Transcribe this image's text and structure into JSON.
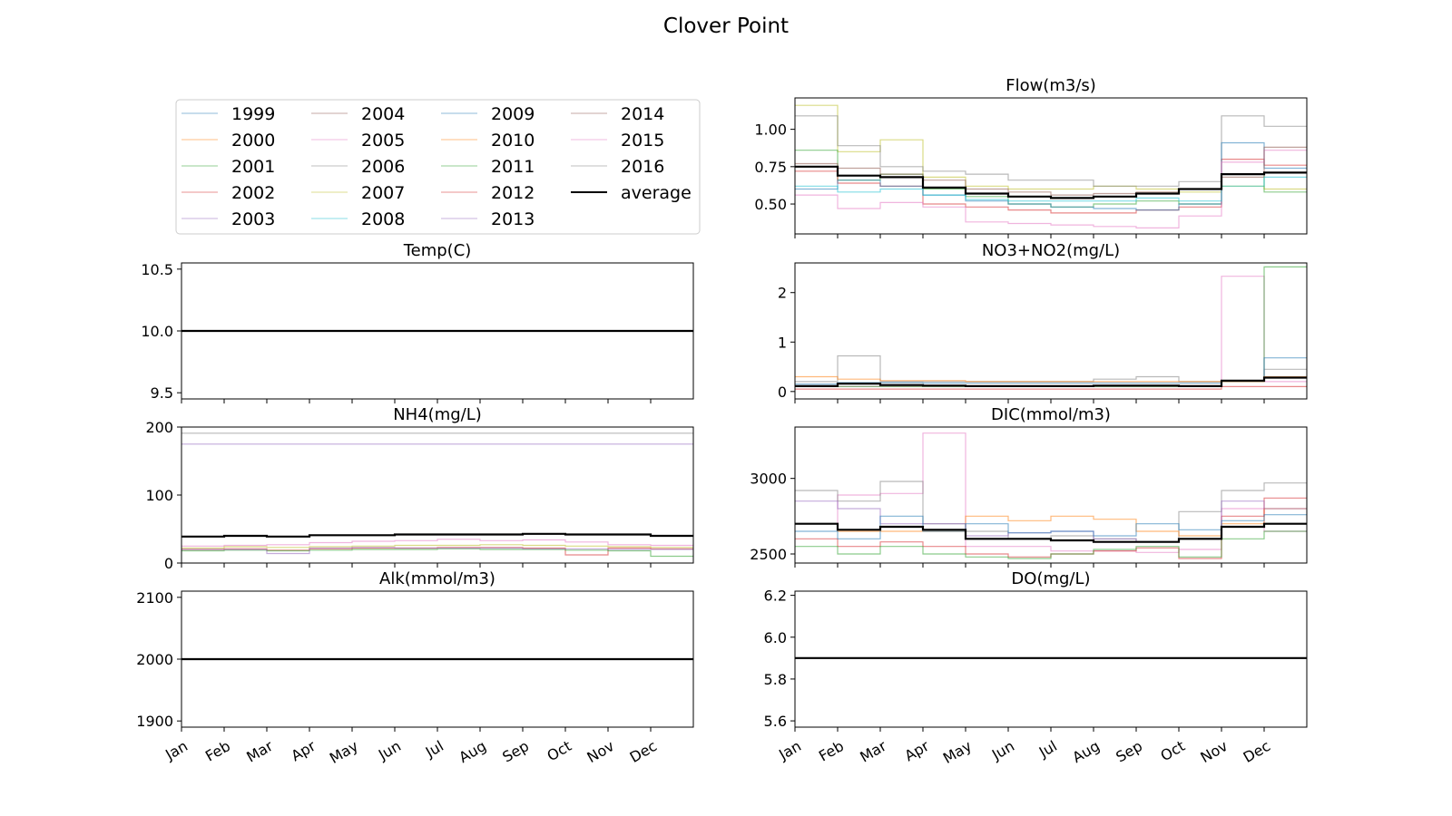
{
  "figure_title": "Clover Point",
  "months": [
    "Jan",
    "Feb",
    "Mar",
    "Apr",
    "May",
    "Jun",
    "Jul",
    "Aug",
    "Sep",
    "Oct",
    "Nov",
    "Dec"
  ],
  "legend": {
    "entries": [
      {
        "label": "1999",
        "color": "#1f77b4"
      },
      {
        "label": "2000",
        "color": "#ff7f0e"
      },
      {
        "label": "2001",
        "color": "#2ca02c"
      },
      {
        "label": "2002",
        "color": "#d62728"
      },
      {
        "label": "2003",
        "color": "#9467bd"
      },
      {
        "label": "2004",
        "color": "#8c564b"
      },
      {
        "label": "2005",
        "color": "#e377c2"
      },
      {
        "label": "2006",
        "color": "#7f7f7f"
      },
      {
        "label": "2007",
        "color": "#bcbd22"
      },
      {
        "label": "2008",
        "color": "#17becf"
      },
      {
        "label": "2009",
        "color": "#1f77b4"
      },
      {
        "label": "2010",
        "color": "#ff7f0e"
      },
      {
        "label": "2011",
        "color": "#2ca02c"
      },
      {
        "label": "2012",
        "color": "#d62728"
      },
      {
        "label": "2013",
        "color": "#9467bd"
      },
      {
        "label": "2014",
        "color": "#8c564b"
      },
      {
        "label": "2015",
        "color": "#e377c2"
      },
      {
        "label": "2016",
        "color": "#7f7f7f"
      },
      {
        "label": "average",
        "color": "#000000"
      }
    ]
  },
  "chart_data": [
    {
      "type": "line",
      "title": "Temp(C)",
      "ylim": [
        9.45,
        10.55
      ],
      "yticks": [
        9.5,
        10.0,
        10.5
      ],
      "tick_decimals": 1,
      "series": [
        {
          "name": "average",
          "values": [
            10,
            10,
            10,
            10,
            10,
            10,
            10,
            10,
            10,
            10,
            10,
            10
          ]
        }
      ]
    },
    {
      "type": "line",
      "title": "NH4(mg/L)",
      "ylim": [
        0,
        200
      ],
      "yticks": [
        0,
        100,
        200
      ],
      "tick_decimals": 0,
      "series": [
        {
          "name": "2006",
          "values": [
            191,
            191,
            191,
            191,
            191,
            191,
            191,
            191,
            191,
            191,
            191,
            191
          ]
        },
        {
          "name": "2003",
          "values": [
            175,
            175,
            175,
            175,
            175,
            175,
            175,
            175,
            175,
            175,
            175,
            175
          ]
        },
        {
          "name": "2005",
          "values": [
            25,
            26,
            27,
            30,
            32,
            33,
            35,
            33,
            34,
            31,
            27,
            26
          ]
        },
        {
          "name": "2007",
          "values": [
            22,
            24,
            23,
            24,
            25,
            26,
            26,
            27,
            26,
            25,
            24,
            23
          ]
        },
        {
          "name": "2002",
          "values": [
            20,
            21,
            19,
            21,
            22,
            22,
            23,
            23,
            22,
            12,
            22,
            21
          ]
        },
        {
          "name": "2001",
          "values": [
            18,
            19,
            18,
            19,
            20,
            20,
            21,
            20,
            20,
            19,
            18,
            10
          ]
        },
        {
          "name": "2013",
          "values": [
            20,
            20,
            14,
            22,
            23,
            22,
            22,
            22,
            21,
            21,
            20,
            20
          ]
        },
        {
          "name": "average",
          "values": [
            39,
            40,
            39,
            41,
            41,
            42,
            42,
            42,
            43,
            42,
            42,
            40
          ]
        }
      ]
    },
    {
      "type": "line",
      "title": "Alk(mmol/m3)",
      "ylim": [
        1890,
        2110
      ],
      "yticks": [
        1900,
        2000,
        2100
      ],
      "tick_decimals": 0,
      "series": [
        {
          "name": "average",
          "values": [
            2000,
            2000,
            2000,
            2000,
            2000,
            2000,
            2000,
            2000,
            2000,
            2000,
            2000,
            2000
          ]
        }
      ]
    },
    {
      "type": "line",
      "title": "Flow(m3/s)",
      "ylim": [
        0.3,
        1.21
      ],
      "yticks": [
        0.5,
        0.75,
        1.0
      ],
      "tick_decimals": 2,
      "series": [
        {
          "name": "2007",
          "values": [
            1.16,
            0.85,
            0.93,
            0.68,
            0.62,
            0.6,
            0.6,
            0.62,
            0.6,
            0.58,
            0.62,
            0.6
          ]
        },
        {
          "name": "2006",
          "values": [
            1.09,
            0.89,
            0.75,
            0.72,
            0.7,
            0.66,
            0.66,
            0.62,
            0.62,
            0.65,
            1.09,
            1.02
          ]
        },
        {
          "name": "2001",
          "values": [
            0.86,
            0.66,
            0.7,
            0.6,
            0.55,
            0.5,
            0.48,
            0.5,
            0.52,
            0.5,
            0.7,
            0.58
          ]
        },
        {
          "name": "2012",
          "values": [
            0.72,
            0.64,
            0.62,
            0.5,
            0.48,
            0.46,
            0.44,
            0.44,
            0.46,
            0.48,
            0.8,
            0.76
          ]
        },
        {
          "name": "1999",
          "values": [
            0.6,
            0.66,
            0.62,
            0.56,
            0.52,
            0.5,
            0.48,
            0.47,
            0.46,
            0.5,
            0.91,
            0.74
          ]
        },
        {
          "name": "2005",
          "values": [
            0.56,
            0.47,
            0.51,
            0.48,
            0.38,
            0.37,
            0.36,
            0.35,
            0.34,
            0.42,
            0.78,
            0.86
          ]
        },
        {
          "name": "2014",
          "values": [
            0.77,
            0.74,
            0.7,
            0.66,
            0.6,
            0.58,
            0.56,
            0.57,
            0.58,
            0.6,
            0.68,
            0.88
          ]
        },
        {
          "name": "2008",
          "values": [
            0.62,
            0.58,
            0.6,
            0.56,
            0.53,
            0.52,
            0.52,
            0.52,
            0.54,
            0.52,
            0.62,
            0.68
          ]
        },
        {
          "name": "average",
          "values": [
            0.75,
            0.69,
            0.68,
            0.61,
            0.57,
            0.55,
            0.54,
            0.55,
            0.57,
            0.6,
            0.7,
            0.71
          ]
        }
      ]
    },
    {
      "type": "line",
      "title": "NO3+NO2(mg/L)",
      "ylim": [
        -0.15,
        2.6
      ],
      "yticks": [
        0,
        1,
        2
      ],
      "tick_decimals": 0,
      "series": [
        {
          "name": "2015",
          "values": [
            0.1,
            0.1,
            0.1,
            0.1,
            0.1,
            0.1,
            0.1,
            0.1,
            0.1,
            0.1,
            2.33,
            0.2
          ]
        },
        {
          "name": "2011",
          "values": [
            0.1,
            0.1,
            0.1,
            0.1,
            0.1,
            0.1,
            0.1,
            0.1,
            0.1,
            0.1,
            0.2,
            2.52
          ]
        },
        {
          "name": "2006",
          "values": [
            0.2,
            0.72,
            0.2,
            0.2,
            0.2,
            0.2,
            0.2,
            0.25,
            0.3,
            0.2,
            0.2,
            0.45
          ]
        },
        {
          "name": "1999",
          "values": [
            0.15,
            0.18,
            0.18,
            0.17,
            0.17,
            0.17,
            0.17,
            0.17,
            0.17,
            0.17,
            0.2,
            0.68
          ]
        },
        {
          "name": "2000",
          "values": [
            0.3,
            0.25,
            0.22,
            0.22,
            0.2,
            0.2,
            0.2,
            0.2,
            0.2,
            0.2,
            0.2,
            0.3
          ]
        },
        {
          "name": "2002",
          "values": [
            0.05,
            0.05,
            0.05,
            0.05,
            0.05,
            0.05,
            0.05,
            0.05,
            0.05,
            0.05,
            0.1,
            0.1
          ]
        },
        {
          "name": "average",
          "values": [
            0.11,
            0.16,
            0.13,
            0.12,
            0.11,
            0.11,
            0.11,
            0.12,
            0.12,
            0.11,
            0.22,
            0.28
          ]
        }
      ]
    },
    {
      "type": "line",
      "title": "DIC(mmol/m3)",
      "ylim": [
        2440,
        3340
      ],
      "yticks": [
        2500,
        3000
      ],
      "tick_decimals": 0,
      "series": [
        {
          "name": "2005",
          "values": [
            2700,
            2890,
            2900,
            3300,
            2550,
            2550,
            2520,
            2520,
            2510,
            2530,
            2800,
            2650
          ]
        },
        {
          "name": "2006",
          "values": [
            2920,
            2850,
            2980,
            2700,
            2650,
            2600,
            2620,
            2600,
            2580,
            2780,
            2920,
            2970
          ]
        },
        {
          "name": "2000",
          "values": [
            2700,
            2650,
            2650,
            2650,
            2750,
            2720,
            2750,
            2730,
            2650,
            2620,
            2700,
            2800
          ]
        },
        {
          "name": "2012",
          "values": [
            2600,
            2550,
            2580,
            2550,
            2500,
            2480,
            2500,
            2520,
            2540,
            2470,
            2750,
            2870
          ]
        },
        {
          "name": "2003",
          "values": [
            2850,
            2800,
            2700,
            2700,
            2620,
            2640,
            2650,
            2600,
            2580,
            2600,
            2850,
            2800
          ]
        },
        {
          "name": "2011",
          "values": [
            2550,
            2500,
            2550,
            2500,
            2480,
            2470,
            2500,
            2530,
            2550,
            2480,
            2600,
            2650
          ]
        },
        {
          "name": "2009",
          "values": [
            2650,
            2600,
            2750,
            2650,
            2700,
            2640,
            2650,
            2620,
            2700,
            2660,
            2720,
            2760
          ]
        },
        {
          "name": "average",
          "values": [
            2700,
            2660,
            2680,
            2660,
            2600,
            2600,
            2590,
            2580,
            2580,
            2600,
            2680,
            2700
          ]
        }
      ]
    },
    {
      "type": "line",
      "title": "DO(mg/L)",
      "ylim": [
        5.57,
        6.22
      ],
      "yticks": [
        5.6,
        5.8,
        6.0,
        6.2
      ],
      "tick_decimals": 1,
      "series": [
        {
          "name": "average",
          "values": [
            5.9,
            5.9,
            5.9,
            5.9,
            5.9,
            5.9,
            5.9,
            5.9,
            5.9,
            5.9,
            5.9,
            5.9
          ]
        }
      ]
    }
  ]
}
